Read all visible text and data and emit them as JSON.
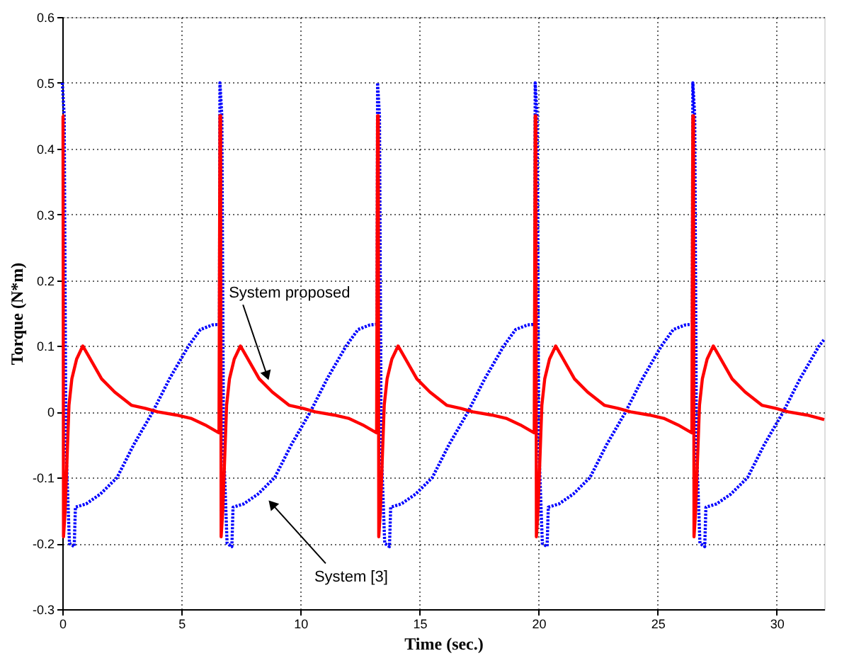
{
  "chart_data": {
    "type": "line",
    "xlabel": "Time (sec.)",
    "ylabel": "Torque (N*m)",
    "xlim": [
      0,
      32
    ],
    "xticks": [
      0,
      5,
      10,
      15,
      20,
      25,
      30
    ],
    "ylim": [
      -0.3,
      0.6
    ],
    "yticks": [
      -0.3,
      -0.2,
      -0.1,
      0,
      0.1,
      0.2,
      0.3,
      0.4,
      0.5,
      0.6
    ],
    "grid": true,
    "marker": "none",
    "line_style": "solid",
    "series": [
      {
        "color": "#0000ff",
        "line_style": "dotted",
        "x": [
          0,
          0.08,
          0.15,
          0.3,
          0.5,
          0.55,
          1.0,
          1.6,
          2.3,
          3.0,
          3.8,
          4.5,
          5.3,
          5.8,
          6.3,
          6.6,
          6.62,
          6.7,
          6.77,
          6.92,
          7.12,
          7.17,
          7.62,
          8.22,
          8.92,
          9.62,
          10.42,
          11.12,
          11.92,
          12.42,
          12.92,
          13.22,
          13.24,
          13.32,
          13.39,
          13.54,
          13.74,
          13.79,
          14.24,
          14.84,
          15.54,
          16.24,
          17.04,
          17.74,
          18.54,
          19.04,
          19.54,
          19.84,
          19.86,
          19.94,
          20.01,
          20.16,
          20.36,
          20.41,
          20.86,
          21.46,
          22.16,
          22.86,
          23.66,
          24.36,
          25.16,
          25.66,
          26.16,
          26.46,
          26.48,
          26.56,
          26.63,
          26.78,
          26.98,
          27.03,
          27.48,
          28.08,
          28.78,
          29.48,
          30.28,
          30.98,
          31.78,
          32
        ],
        "values": [
          0.5,
          0.45,
          -0.05,
          -0.2,
          -0.205,
          -0.145,
          -0.14,
          -0.125,
          -0.1,
          -0.05,
          0,
          0.05,
          0.1,
          0.125,
          0.132,
          0.133,
          0.5,
          0.45,
          -0.05,
          -0.2,
          -0.205,
          -0.145,
          -0.14,
          -0.125,
          -0.1,
          -0.05,
          0,
          0.05,
          0.1,
          0.125,
          0.132,
          0.133,
          0.5,
          0.45,
          -0.05,
          -0.2,
          -0.205,
          -0.145,
          -0.14,
          -0.125,
          -0.1,
          -0.05,
          0,
          0.05,
          0.1,
          0.125,
          0.132,
          0.133,
          0.5,
          0.45,
          -0.05,
          -0.2,
          -0.205,
          -0.145,
          -0.14,
          -0.125,
          -0.1,
          -0.05,
          0,
          0.05,
          0.1,
          0.125,
          0.132,
          0.133,
          0.5,
          0.45,
          -0.05,
          -0.2,
          -0.205,
          -0.145,
          -0.14,
          -0.125,
          -0.1,
          -0.05,
          0,
          0.05,
          0.1,
          0.11
        ]
      },
      {
        "color": "#ff0000",
        "x": [
          0,
          0.03,
          0.05,
          0.12,
          0.28,
          0.4,
          0.6,
          0.86,
          1.1,
          1.65,
          2.2,
          2.9,
          3.5,
          4.0,
          4.8,
          5.4,
          6.0,
          6.58,
          6.62,
          6.65,
          6.67,
          6.74,
          6.9,
          7.02,
          7.22,
          7.48,
          7.72,
          8.27,
          8.82,
          9.52,
          10.12,
          10.62,
          11.42,
          12.02,
          12.62,
          13.2,
          13.24,
          13.27,
          13.29,
          13.36,
          13.52,
          13.64,
          13.84,
          14.1,
          14.34,
          14.89,
          15.44,
          16.14,
          16.74,
          17.24,
          18.04,
          18.64,
          19.24,
          19.82,
          19.86,
          19.89,
          19.91,
          19.98,
          20.14,
          20.26,
          20.46,
          20.72,
          20.96,
          21.51,
          22.06,
          22.76,
          23.36,
          23.86,
          24.66,
          25.26,
          25.86,
          26.44,
          26.48,
          26.51,
          26.53,
          26.6,
          26.76,
          26.88,
          27.08,
          27.34,
          27.58,
          28.13,
          28.68,
          29.38,
          29.98,
          30.48,
          31.28,
          32
        ],
        "values": [
          0.45,
          0.45,
          -0.19,
          -0.15,
          0.01,
          0.05,
          0.08,
          0.1,
          0.085,
          0.05,
          0.03,
          0.01,
          0.005,
          0,
          -0.005,
          -0.01,
          -0.02,
          -0.032,
          0.45,
          0.45,
          -0.19,
          -0.15,
          0.01,
          0.05,
          0.08,
          0.1,
          0.085,
          0.05,
          0.03,
          0.01,
          0.005,
          0,
          -0.005,
          -0.01,
          -0.02,
          -0.032,
          0.45,
          0.45,
          -0.19,
          -0.15,
          0.01,
          0.05,
          0.08,
          0.1,
          0.085,
          0.05,
          0.03,
          0.01,
          0.005,
          0,
          -0.005,
          -0.01,
          -0.02,
          -0.032,
          0.45,
          0.45,
          -0.19,
          -0.15,
          0.01,
          0.05,
          0.08,
          0.1,
          0.085,
          0.05,
          0.03,
          0.01,
          0.005,
          0,
          -0.005,
          -0.01,
          -0.02,
          -0.032,
          0.45,
          0.45,
          -0.19,
          -0.15,
          0.01,
          0.05,
          0.08,
          0.1,
          0.085,
          0.05,
          0.03,
          0.01,
          0.005,
          0,
          -0.005,
          -0.012
        ]
      }
    ],
    "annotations": [
      {
        "text": "System proposed",
        "x": 8.6,
        "y": 0.055
      },
      {
        "text": "System [3]",
        "x": 8.8,
        "y": -0.14
      }
    ]
  }
}
